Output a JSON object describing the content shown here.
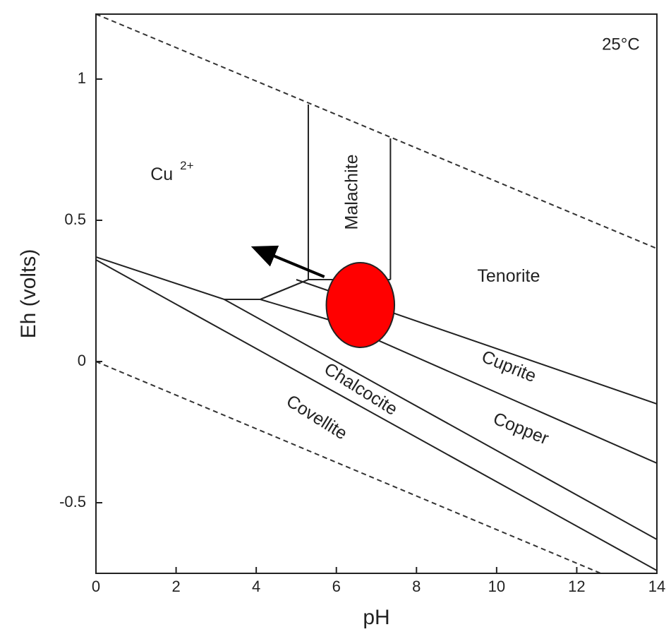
{
  "chart_data": {
    "type": "line",
    "title": "",
    "temperature_label": "25°C",
    "xlabel": "pH",
    "ylabel": "Eh (volts)",
    "xlim": [
      0,
      14
    ],
    "ylim": [
      -0.75,
      1.23
    ],
    "x_ticks": [
      0,
      2,
      4,
      6,
      8,
      10,
      12,
      14
    ],
    "y_ticks": [
      -0.5,
      0,
      0.5,
      1
    ],
    "x_tick_labels": [
      "0",
      "2",
      "4",
      "6",
      "8",
      "10",
      "12",
      "14"
    ],
    "y_tick_labels": [
      "-0.5",
      "0",
      "0.5",
      "1"
    ],
    "grid": false,
    "water_stability_lines": [
      {
        "style": "dashed",
        "points": [
          [
            0,
            1.23
          ],
          [
            14,
            0.4
          ]
        ]
      },
      {
        "style": "dashed",
        "points": [
          [
            0,
            0.0
          ],
          [
            12.6,
            -0.75
          ]
        ]
      }
    ],
    "boundaries": [
      {
        "points": [
          [
            0,
            0.37
          ],
          [
            3.2,
            0.22
          ],
          [
            4.1,
            0.22
          ],
          [
            5.3,
            0.29
          ],
          [
            7.35,
            0.29
          ]
        ]
      },
      {
        "points": [
          [
            5.3,
            0.29
          ],
          [
            5.3,
            0.91
          ]
        ]
      },
      {
        "points": [
          [
            7.35,
            0.29
          ],
          [
            7.35,
            0.79
          ]
        ]
      },
      {
        "points": [
          [
            4.1,
            0.22
          ],
          [
            5.3,
            0.29
          ]
        ]
      },
      {
        "points": [
          [
            4.1,
            0.22
          ],
          [
            6.0,
            0.14
          ],
          [
            14,
            -0.36
          ]
        ]
      },
      {
        "points": [
          [
            5.0,
            0.29
          ],
          [
            14,
            -0.15
          ]
        ]
      },
      {
        "points": [
          [
            3.2,
            0.22
          ],
          [
            14,
            -0.63
          ]
        ]
      },
      {
        "points": [
          [
            0,
            0.36
          ],
          [
            14,
            -0.74
          ]
        ]
      }
    ],
    "regions": [
      {
        "name": "Cu",
        "superscript": "2+",
        "x": 1.9,
        "y": 0.66,
        "rotation": 0
      },
      {
        "name": "Malachite",
        "x": 6.4,
        "y": 0.6,
        "rotation": -90
      },
      {
        "name": "Tenorite",
        "x": 10.3,
        "y": 0.3,
        "rotation": 0
      },
      {
        "name": "Cuprite",
        "x": 10.3,
        "y": -0.02,
        "rotation": 22
      },
      {
        "name": "Copper",
        "x": 10.6,
        "y": -0.24,
        "rotation": 22
      },
      {
        "name": "Chalcocite",
        "x": 6.6,
        "y": -0.1,
        "rotation": 32
      },
      {
        "name": "Covellite",
        "x": 5.5,
        "y": -0.2,
        "rotation": 32
      }
    ],
    "marker": {
      "shape": "ellipse",
      "color": "#ff0000",
      "center": [
        6.6,
        0.2
      ],
      "radius_x": 0.85,
      "radius_y": 0.15
    },
    "arrow": {
      "color": "#000000",
      "from": [
        5.7,
        0.3
      ],
      "to": [
        4.0,
        0.4
      ]
    }
  }
}
